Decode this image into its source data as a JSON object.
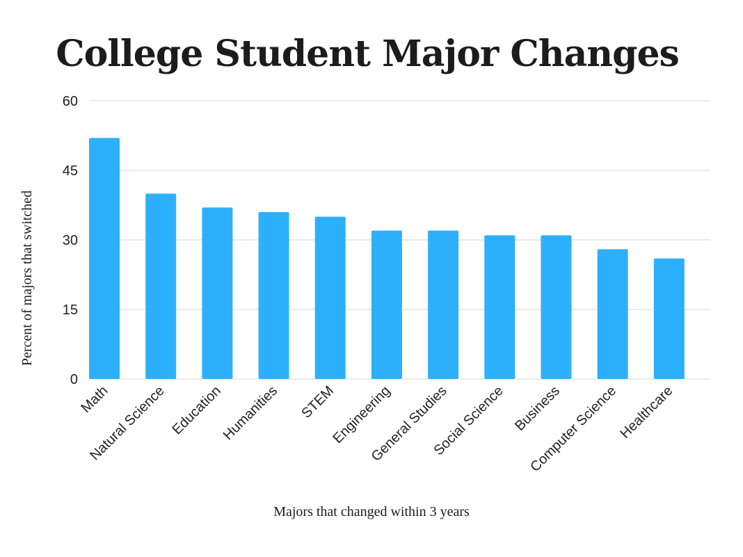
{
  "chart_data": {
    "type": "bar",
    "title": "College Student Major Changes",
    "xlabel": "Majors that changed within 3 years",
    "ylabel": "Percent of majors that switched",
    "categories": [
      "Math",
      "Natural Science",
      "Education",
      "Humanities",
      "STEM",
      "Engineering",
      "General Studies",
      "Social Science",
      "Business",
      "Computer Science",
      "Healthcare"
    ],
    "values": [
      52,
      40,
      37,
      36,
      35,
      32,
      32,
      31,
      31,
      28,
      26
    ],
    "ylim": [
      0,
      60
    ],
    "yticks": [
      0,
      15,
      30,
      45,
      60
    ],
    "grid": true,
    "bar_color": "#2db0fc"
  }
}
